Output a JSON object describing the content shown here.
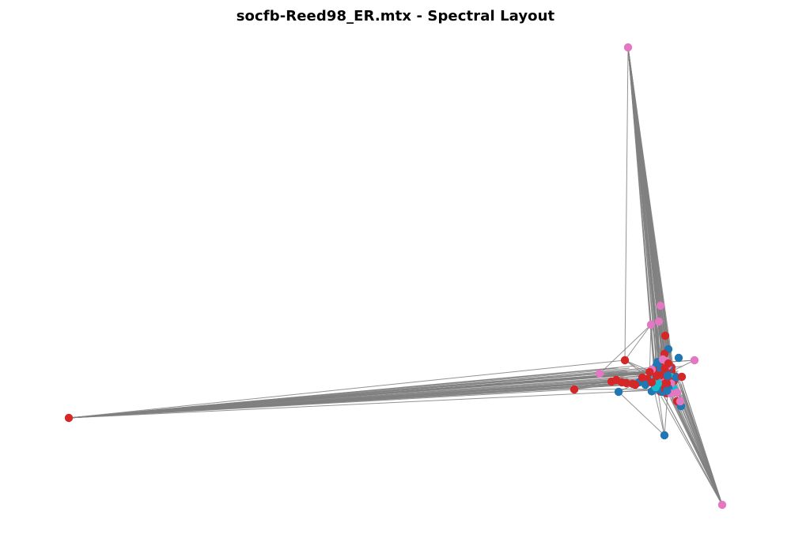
{
  "title": "socfb-Reed98_ER.mtx - Spectral Layout",
  "colors": {
    "edge": "#808080",
    "red": "#d62728",
    "blue": "#1f77b4",
    "pink": "#e377c2",
    "cyan": "#17becf"
  },
  "edge_bundles": [
    {
      "name": "left-fan",
      "color": "#808080"
    },
    {
      "name": "top-fan",
      "color": "#808080"
    },
    {
      "name": "bottom-fan",
      "color": "#808080"
    }
  ],
  "nodes_summary": {
    "outlier_nodes": [
      "left-red",
      "top-pink",
      "bottom-right-pink",
      "lower-blue"
    ],
    "cluster": "dense core at right"
  }
}
